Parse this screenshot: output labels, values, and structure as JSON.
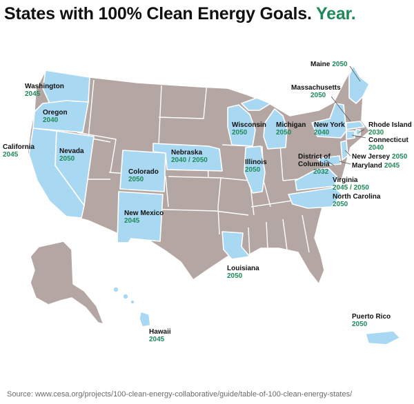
{
  "title": {
    "main": "States with 100% Clean Energy Goals.",
    "accent": "Year."
  },
  "colors": {
    "goal_state": "#a9d8f2",
    "other_state": "#b4a7a3",
    "border": "#ffffff",
    "year_text": "#1e8a5a",
    "title_text": "#111111",
    "source_text": "#6a6a6a"
  },
  "states": [
    {
      "name": "Washington",
      "year": "2045"
    },
    {
      "name": "Oregon",
      "year": "2040"
    },
    {
      "name": "California",
      "year": "2045"
    },
    {
      "name": "Nevada",
      "year": "2050"
    },
    {
      "name": "Colorado",
      "year": "2050"
    },
    {
      "name": "New Mexico",
      "year": "2045"
    },
    {
      "name": "Nebraska",
      "year": "2040 / 2050"
    },
    {
      "name": "Wisconsin",
      "year": "2050"
    },
    {
      "name": "Illinois",
      "year": "2050"
    },
    {
      "name": "Michigan",
      "year": "2050"
    },
    {
      "name": "Louisiana",
      "year": "2050"
    },
    {
      "name": "New York",
      "year": "2040"
    },
    {
      "name": "Maine",
      "year": "2050"
    },
    {
      "name": "Massachusetts",
      "year": "2050"
    },
    {
      "name": "Rhode Island",
      "year": "2030"
    },
    {
      "name": "Connecticut",
      "year": "2040"
    },
    {
      "name": "New Jersey",
      "year": "2050"
    },
    {
      "name": "Maryland",
      "year": "2045"
    },
    {
      "name": "District of Columbia",
      "year": "2032"
    },
    {
      "name": "Virginia",
      "year": "2045 / 2050"
    },
    {
      "name": "North Carolina",
      "year": "2050"
    },
    {
      "name": "Hawaii",
      "year": "2045"
    },
    {
      "name": "Puerto Rico",
      "year": "2050"
    }
  ],
  "source": "Source: www.cesa.org/projects/100-clean-energy-collaborative/guide/table-of-100-clean-energy-states/"
}
